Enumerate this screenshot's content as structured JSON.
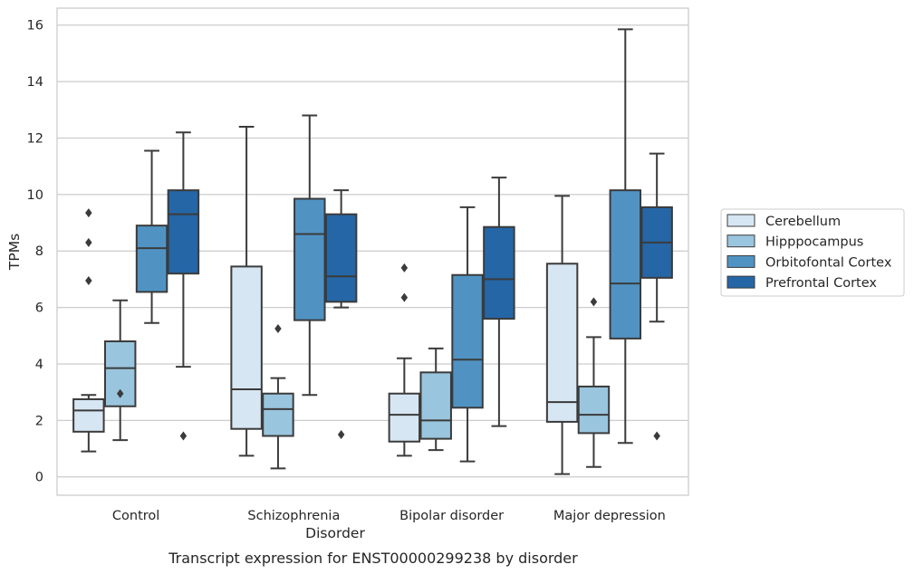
{
  "caption": "Transcript expression for ENST00000299238 by disorder",
  "chart_data": {
    "type": "box",
    "title": "",
    "xlabel": "Disorder",
    "ylabel": "TPMs",
    "ylim": [
      -0.65,
      16.6
    ],
    "yticks": [
      0,
      2,
      4,
      6,
      8,
      10,
      12,
      14,
      16
    ],
    "grid": "horizontal",
    "legend_position": "right",
    "categories": [
      "Control",
      "Schizophrenia",
      "Bipolar disorder",
      "Major depression"
    ],
    "series": [
      {
        "name": "Cerebellum",
        "color": "#d7e6f3",
        "boxes": [
          {
            "whisker_low": 0.9,
            "q1": 1.6,
            "median": 2.35,
            "q3": 2.75,
            "whisker_high": 2.9,
            "outliers": [
              9.35,
              8.3,
              6.95
            ]
          },
          {
            "whisker_low": 0.75,
            "q1": 1.7,
            "median": 3.1,
            "q3": 7.45,
            "whisker_high": 12.4,
            "outliers": []
          },
          {
            "whisker_low": 0.75,
            "q1": 1.25,
            "median": 2.2,
            "q3": 2.95,
            "whisker_high": 4.2,
            "outliers": [
              7.4,
              6.35
            ]
          },
          {
            "whisker_low": 0.1,
            "q1": 1.95,
            "median": 2.65,
            "q3": 7.55,
            "whisker_high": 9.95,
            "outliers": []
          }
        ]
      },
      {
        "name": "Hipppocampus",
        "color": "#9ac5de",
        "boxes": [
          {
            "whisker_low": 1.3,
            "q1": 2.5,
            "median": 3.85,
            "q3": 4.8,
            "whisker_high": 6.25,
            "outliers": [
              2.95
            ]
          },
          {
            "whisker_low": 0.3,
            "q1": 1.45,
            "median": 2.4,
            "q3": 2.95,
            "whisker_high": 3.5,
            "outliers": [
              5.25
            ]
          },
          {
            "whisker_low": 0.95,
            "q1": 1.35,
            "median": 2.0,
            "q3": 3.7,
            "whisker_high": 4.55,
            "outliers": []
          },
          {
            "whisker_low": 0.35,
            "q1": 1.55,
            "median": 2.2,
            "q3": 3.2,
            "whisker_high": 4.95,
            "outliers": [
              6.2
            ]
          }
        ]
      },
      {
        "name": "Orbitofontal Cortex",
        "color": "#5093c3",
        "boxes": [
          {
            "whisker_low": 5.45,
            "q1": 6.55,
            "median": 8.1,
            "q3": 8.9,
            "whisker_high": 11.55,
            "outliers": []
          },
          {
            "whisker_low": 2.9,
            "q1": 5.55,
            "median": 8.6,
            "q3": 9.85,
            "whisker_high": 12.8,
            "outliers": []
          },
          {
            "whisker_low": 0.55,
            "q1": 2.45,
            "median": 4.15,
            "q3": 7.15,
            "whisker_high": 9.55,
            "outliers": []
          },
          {
            "whisker_low": 1.2,
            "q1": 4.9,
            "median": 6.85,
            "q3": 10.15,
            "whisker_high": 15.85,
            "outliers": []
          }
        ]
      },
      {
        "name": "Prefrontal Cortex",
        "color": "#2566a6",
        "boxes": [
          {
            "whisker_low": 3.9,
            "q1": 7.2,
            "median": 9.3,
            "q3": 10.15,
            "whisker_high": 12.2,
            "outliers": [
              1.45
            ]
          },
          {
            "whisker_low": 6.0,
            "q1": 6.2,
            "median": 7.1,
            "q3": 9.3,
            "whisker_high": 10.15,
            "outliers": [
              1.5
            ]
          },
          {
            "whisker_low": 1.8,
            "q1": 5.6,
            "median": 7.0,
            "q3": 8.85,
            "whisker_high": 10.6,
            "outliers": []
          },
          {
            "whisker_low": 5.5,
            "q1": 7.05,
            "median": 8.3,
            "q3": 9.55,
            "whisker_high": 11.45,
            "outliers": [
              1.45
            ]
          }
        ]
      }
    ]
  }
}
